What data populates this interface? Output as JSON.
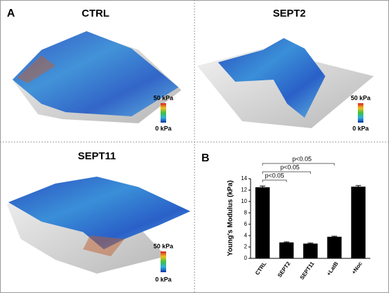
{
  "figure": {
    "panel_labels": [
      "A",
      "B"
    ],
    "images": [
      {
        "title": "CTRL",
        "scale_max": "50 kPa",
        "scale_min": "0 kPa"
      },
      {
        "title": "SEPT2",
        "scale_max": "50 kPa",
        "scale_min": "0 kPa"
      },
      {
        "title": "SEPT11",
        "scale_max": "50 kPa",
        "scale_min": "0 kPa"
      }
    ]
  },
  "chart_data": {
    "type": "bar",
    "categories": [
      "CTRL",
      "SEPT2",
      "SEPT11",
      "+LatB",
      "+Noc"
    ],
    "values": [
      12.5,
      2.8,
      2.6,
      3.8,
      12.6
    ],
    "errors": [
      0.2,
      0.1,
      0.1,
      0.1,
      0.2
    ],
    "color": "#000000",
    "ylabel": "Young's Modulus (kPa)",
    "ylim": [
      0,
      14
    ],
    "yticks": [
      0,
      2,
      4,
      6,
      8,
      10,
      12,
      14
    ],
    "annotations": [
      "p<0.05",
      "p<0.05",
      "p<0.05"
    ]
  }
}
